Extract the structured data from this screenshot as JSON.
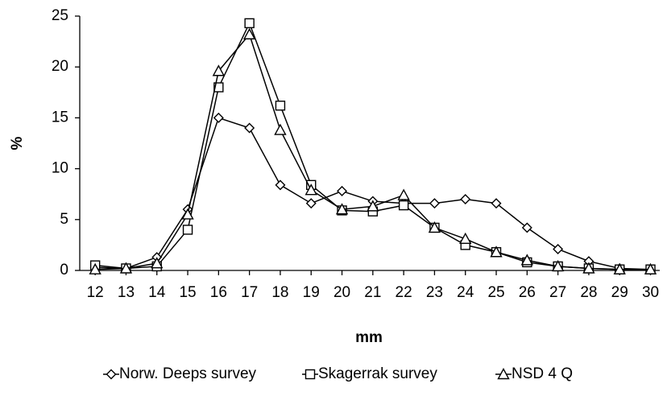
{
  "chart_data": {
    "type": "line",
    "x_label": "mm",
    "y_label": "%",
    "x": [
      12,
      13,
      14,
      15,
      16,
      17,
      18,
      19,
      20,
      21,
      22,
      23,
      24,
      25,
      26,
      27,
      28,
      29,
      30
    ],
    "series": [
      {
        "name": "Norw. Deeps survey",
        "color": "#000000",
        "marker": "diamond",
        "values": [
          0.3,
          0.2,
          1.3,
          6.0,
          15.0,
          14.0,
          8.4,
          6.6,
          7.8,
          6.8,
          6.6,
          6.6,
          7.0,
          6.6,
          4.2,
          2.1,
          0.9,
          0.2,
          0.1
        ]
      },
      {
        "name": "Skagerrak survey",
        "color": "#000000",
        "marker": "square",
        "values": [
          0.5,
          0.2,
          0.4,
          4.0,
          18.0,
          24.3,
          16.2,
          8.4,
          5.9,
          5.8,
          6.4,
          4.2,
          2.5,
          1.8,
          0.8,
          0.4,
          0.2,
          0.1,
          0.1
        ]
      },
      {
        "name": "NSD 4 Q",
        "color": "#000000",
        "marker": "triangle",
        "values": [
          0.1,
          0.2,
          0.7,
          5.5,
          19.6,
          23.2,
          13.8,
          7.9,
          6.0,
          6.3,
          7.4,
          4.2,
          3.1,
          1.8,
          1.0,
          0.4,
          0.2,
          0.1,
          0.1
        ]
      }
    ],
    "xlim": [
      11.5,
      30.3
    ],
    "xticks": [
      12,
      13,
      14,
      15,
      16,
      17,
      18,
      19,
      20,
      21,
      22,
      23,
      24,
      25,
      26,
      27,
      28,
      29,
      30
    ],
    "ylim": [
      0,
      25
    ],
    "yticks": [
      0,
      5,
      10,
      15,
      20,
      25
    ],
    "grid": false,
    "legend": "bottom"
  }
}
